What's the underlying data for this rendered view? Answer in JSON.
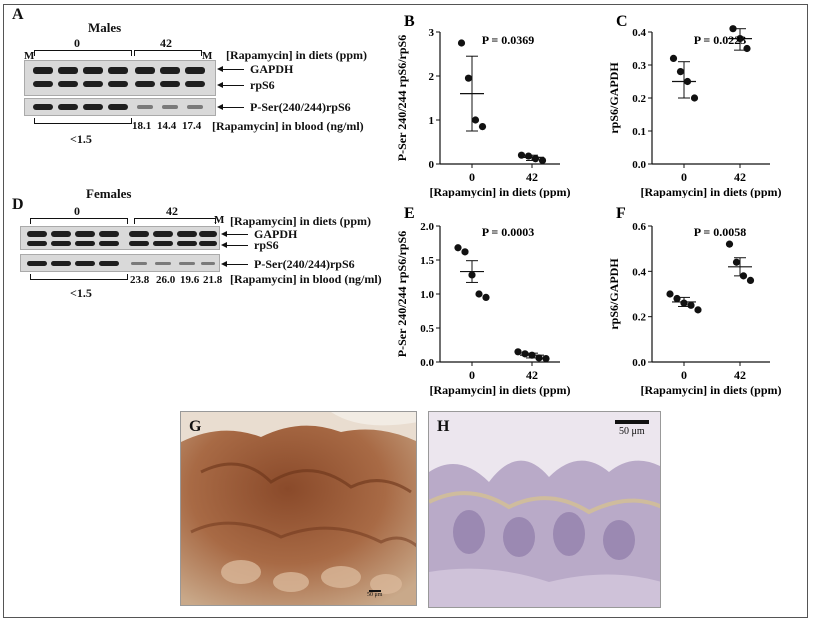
{
  "panels": {
    "A": {
      "letter": "A",
      "title": "Males",
      "dose0": "0",
      "dose42": "42",
      "marker": "M",
      "label_diets": "[Rapamycin] in diets (ppm)",
      "label_gapdh": "GAPDH",
      "label_rps6": "rpS6",
      "label_prps6": "P-Ser(240/244)rpS6",
      "blood_vals": [
        "18.1",
        "14.4",
        "17.4"
      ],
      "blood_low": "<1.5",
      "label_blood": "[Rapamycin] in blood (ng/ml)"
    },
    "D": {
      "letter": "D",
      "title": "Females",
      "dose0": "0",
      "dose42": "42",
      "marker": "M",
      "label_diets": "[Rapamycin] in diets (ppm)",
      "label_gapdh": "GAPDH",
      "label_rps6": "rpS6",
      "label_prps6": "P-Ser(240/244)rpS6",
      "blood_vals": [
        "23.8",
        "26.0",
        "19.6",
        "21.8"
      ],
      "blood_low": "<1.5",
      "label_blood": "[Rapamycin] in blood (ng/ml)"
    },
    "G": {
      "letter": "G",
      "scale_label": "50 μm"
    },
    "H": {
      "letter": "H",
      "scale_label": "50 μm"
    }
  },
  "chart_data": [
    {
      "id": "B",
      "type": "scatter",
      "letter": "B",
      "pvalue": "P = 0.0369",
      "ylabel": "P-Ser 240/244 rpS6/rpS6",
      "xlabel": "[Rapamycin] in diets (ppm)",
      "categories": [
        "0",
        "42"
      ],
      "ylim": [
        0,
        3
      ],
      "yticks": [
        "0",
        "1",
        "2",
        "3"
      ],
      "groups": [
        {
          "points": [
            2.75,
            1.95,
            1.0,
            0.85
          ],
          "mean": 1.6,
          "sd_low": 0.75,
          "sd_high": 2.45
        },
        {
          "points": [
            0.2,
            0.18,
            0.12,
            0.08
          ],
          "mean": 0.15,
          "sd_low": 0.08,
          "sd_high": 0.2
        }
      ]
    },
    {
      "id": "C",
      "type": "scatter",
      "letter": "C",
      "pvalue": "P = 0.0223",
      "ylabel": "rpS6/GAPDH",
      "xlabel": "[Rapamycin] in diets (ppm)",
      "categories": [
        "0",
        "42"
      ],
      "ylim": [
        0,
        0.4
      ],
      "yticks": [
        "0.0",
        "0.1",
        "0.2",
        "0.3",
        "0.4"
      ],
      "groups": [
        {
          "points": [
            0.32,
            0.28,
            0.25,
            0.2
          ],
          "mean": 0.25,
          "sd_low": 0.2,
          "sd_high": 0.31
        },
        {
          "points": [
            0.41,
            0.38,
            0.35
          ],
          "mean": 0.38,
          "sd_low": 0.345,
          "sd_high": 0.41
        }
      ]
    },
    {
      "id": "E",
      "type": "scatter",
      "letter": "E",
      "pvalue": "P = 0.0003",
      "ylabel": "P-Ser 240/244 rpS6/rpS6",
      "xlabel": "[Rapamycin] in diets (ppm)",
      "categories": [
        "0",
        "42"
      ],
      "ylim": [
        0,
        2.0
      ],
      "yticks": [
        "0.0",
        "0.5",
        "1.0",
        "1.5",
        "2.0"
      ],
      "groups": [
        {
          "points": [
            1.68,
            1.62,
            1.28,
            1.0,
            0.95
          ],
          "mean": 1.33,
          "sd_low": 1.17,
          "sd_high": 1.49
        },
        {
          "points": [
            0.15,
            0.12,
            0.1,
            0.06,
            0.05
          ],
          "mean": 0.1,
          "sd_low": 0.06,
          "sd_high": 0.13
        }
      ]
    },
    {
      "id": "F",
      "type": "scatter",
      "letter": "F",
      "pvalue": "P = 0.0058",
      "ylabel": "rpS6/GAPDH",
      "xlabel": "[Rapamycin] in diets (ppm)",
      "categories": [
        "0",
        "42"
      ],
      "ylim": [
        0,
        0.6
      ],
      "yticks": [
        "0.0",
        "0.2",
        "0.4",
        "0.6"
      ],
      "groups": [
        {
          "points": [
            0.3,
            0.28,
            0.26,
            0.25,
            0.23
          ],
          "mean": 0.265,
          "sd_low": 0.245,
          "sd_high": 0.285
        },
        {
          "points": [
            0.52,
            0.44,
            0.38,
            0.36
          ],
          "mean": 0.42,
          "sd_low": 0.38,
          "sd_high": 0.46
        }
      ]
    }
  ]
}
